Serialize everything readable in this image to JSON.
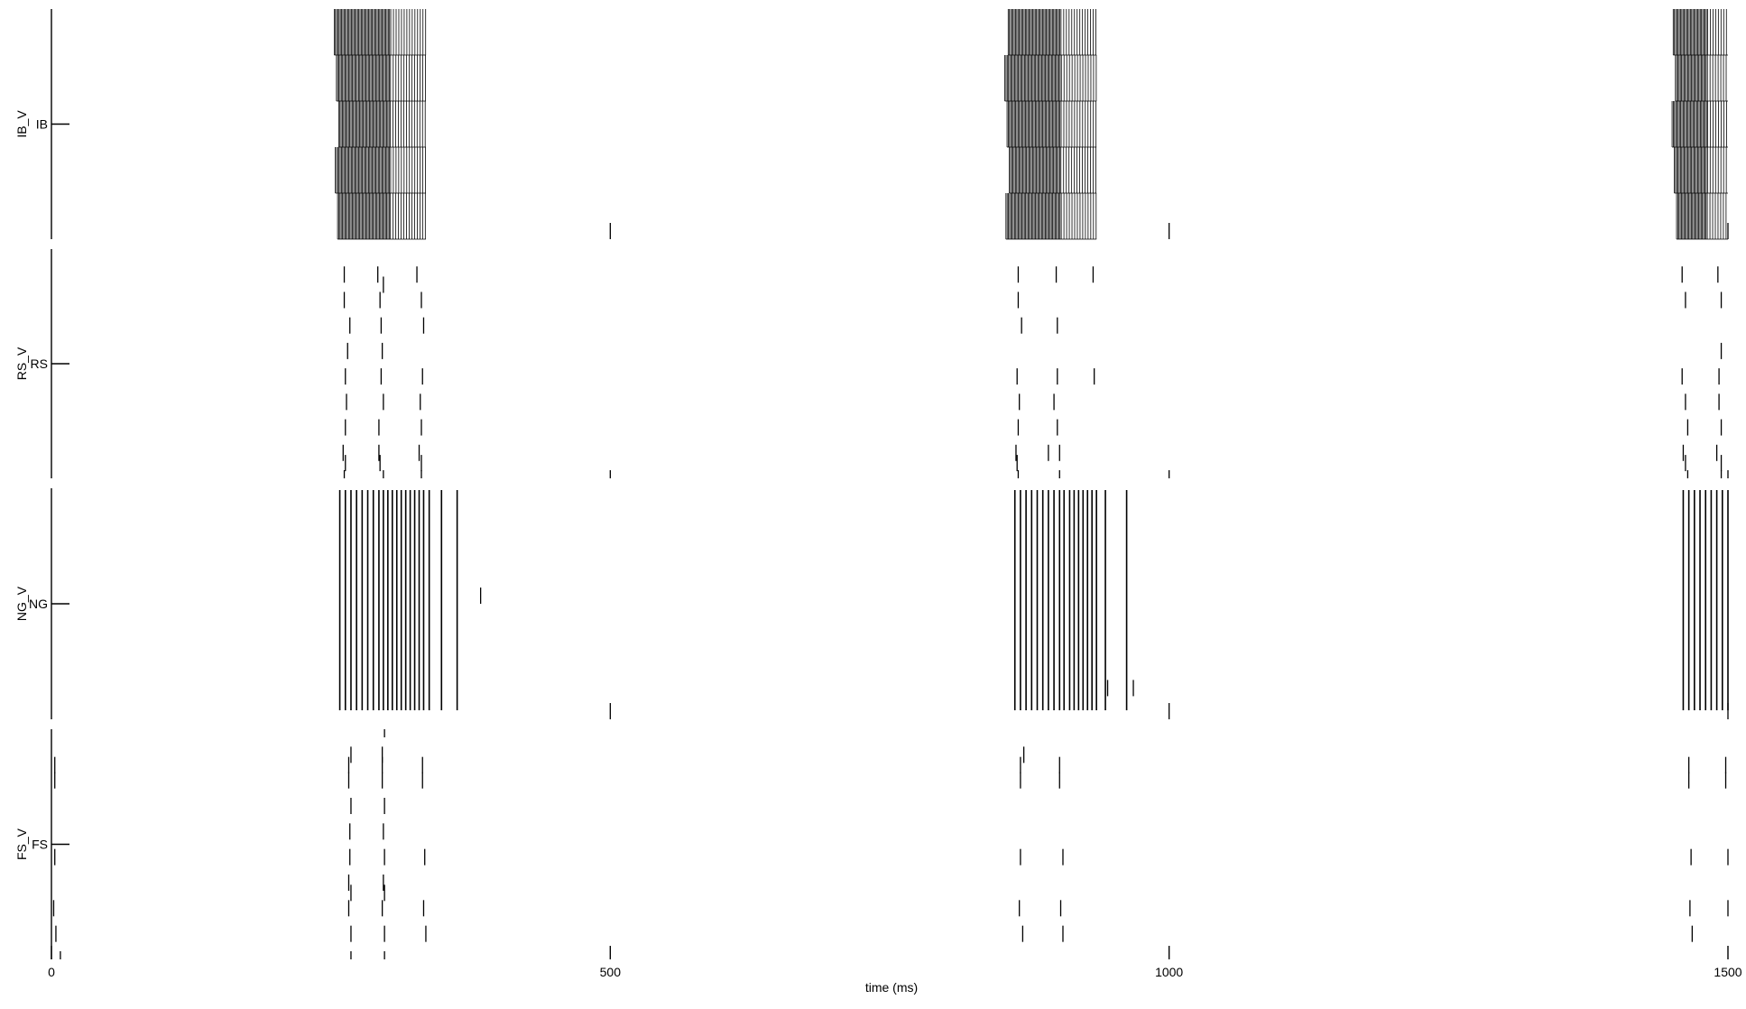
{
  "chart_data": {
    "type": "raster",
    "xlabel": "time (ms)",
    "xlim": [
      0,
      1500
    ],
    "x_ticks": [
      0,
      500,
      1000,
      1500
    ],
    "x_tick_labels": [
      "0",
      "500",
      "1000",
      "1500"
    ],
    "grid": false,
    "ink_color": "#000000",
    "panels": [
      {
        "ylabel": "IB_V",
        "ytick_label": "IB",
        "rows": 5,
        "bursts": [
          {
            "start": 255,
            "end": 335
          },
          {
            "start": 855,
            "end": 935
          },
          {
            "start": 1452,
            "end": 1500
          }
        ],
        "spikes": [
          [
            500,
            5
          ],
          [
            1000,
            5
          ],
          [
            1500,
            5
          ]
        ]
      },
      {
        "ylabel": "RS_V",
        "ytick_label": "RS",
        "rows": 8,
        "spikes": [
          [
            262,
            1
          ],
          [
            292,
            1
          ],
          [
            327,
            1
          ],
          [
            865,
            1
          ],
          [
            899,
            1
          ],
          [
            932,
            1
          ],
          [
            1459,
            1
          ],
          [
            1491,
            1
          ],
          [
            297,
            1.4
          ],
          [
            262,
            2
          ],
          [
            294,
            2
          ],
          [
            331,
            2
          ],
          [
            865,
            2
          ],
          [
            1462,
            2
          ],
          [
            1494,
            2
          ],
          [
            267,
            3
          ],
          [
            295,
            3
          ],
          [
            333,
            3
          ],
          [
            868,
            3
          ],
          [
            900,
            3
          ],
          [
            265,
            4
          ],
          [
            296,
            4
          ],
          [
            1494,
            4
          ],
          [
            263,
            5
          ],
          [
            295,
            5
          ],
          [
            332,
            5
          ],
          [
            864,
            5
          ],
          [
            900,
            5
          ],
          [
            933,
            5
          ],
          [
            1459,
            5
          ],
          [
            1492,
            5
          ],
          [
            264,
            6
          ],
          [
            297,
            6
          ],
          [
            330,
            6
          ],
          [
            866,
            6
          ],
          [
            897,
            6
          ],
          [
            1462,
            6
          ],
          [
            1492,
            6
          ],
          [
            263,
            7
          ],
          [
            293,
            7
          ],
          [
            331,
            7
          ],
          [
            865,
            7
          ],
          [
            900,
            7
          ],
          [
            1464,
            7
          ],
          [
            1494,
            7
          ],
          [
            261,
            8
          ],
          [
            293,
            8
          ],
          [
            329,
            8
          ],
          [
            863,
            8
          ],
          [
            892,
            8
          ],
          [
            902,
            8
          ],
          [
            1460,
            8
          ],
          [
            1490,
            8
          ],
          [
            263,
            8.4
          ],
          [
            294,
            8.4
          ],
          [
            331,
            8.4
          ],
          [
            864,
            8.4
          ],
          [
            1462,
            8.4
          ],
          [
            1494,
            8.4
          ],
          [
            262,
            9
          ],
          [
            297,
            9
          ],
          [
            331,
            9
          ],
          [
            865,
            9
          ],
          [
            902,
            9
          ],
          [
            1464,
            9
          ],
          [
            1494,
            9
          ],
          [
            500,
            9
          ],
          [
            1000,
            9
          ],
          [
            1500,
            9
          ]
        ]
      },
      {
        "ylabel": "NG_V",
        "ytick_label": "NG",
        "rows": 5,
        "spike_times": [
          258,
          263,
          268,
          273,
          278,
          283,
          288,
          293,
          297,
          301,
          305,
          309,
          313,
          317,
          321,
          325,
          329,
          333,
          338,
          349,
          363,
          862,
          867,
          872,
          877,
          882,
          887,
          892,
          897,
          902,
          906,
          911,
          915,
          919,
          923,
          927,
          931,
          935,
          943,
          962,
          1460,
          1465,
          1470,
          1475,
          1480,
          1485,
          1490,
          1495,
          1500
        ],
        "spikes": [
          [
            384,
            2.5
          ],
          [
            945,
            4.5
          ],
          [
            968,
            4.5
          ],
          [
            500,
            5
          ],
          [
            1000,
            5
          ],
          [
            1500,
            5
          ]
        ]
      },
      {
        "ylabel": "FS_V",
        "ytick_label": "FS",
        "rows": 8,
        "spikes": [
          [
            298,
            0
          ],
          [
            268,
            1
          ],
          [
            296,
            1
          ],
          [
            870,
            1
          ],
          [
            3,
            1.4
          ],
          [
            266,
            1.4
          ],
          [
            296,
            1.4
          ],
          [
            332,
            1.4
          ],
          [
            867,
            1.4
          ],
          [
            902,
            1.4
          ],
          [
            1465,
            1.4
          ],
          [
            1498,
            1.4
          ],
          [
            3,
            2
          ],
          [
            266,
            2
          ],
          [
            296,
            2
          ],
          [
            332,
            2
          ],
          [
            867,
            2
          ],
          [
            902,
            2
          ],
          [
            1465,
            2
          ],
          [
            1498,
            2
          ],
          [
            268,
            3
          ],
          [
            298,
            3
          ],
          [
            267,
            4
          ],
          [
            297,
            4
          ],
          [
            3,
            5
          ],
          [
            267,
            5
          ],
          [
            298,
            5
          ],
          [
            334,
            5
          ],
          [
            867,
            5
          ],
          [
            905,
            5
          ],
          [
            1467,
            5
          ],
          [
            1500,
            5
          ],
          [
            266,
            6
          ],
          [
            297,
            6
          ],
          [
            268,
            6.4
          ],
          [
            298,
            6.4
          ],
          [
            2,
            7
          ],
          [
            266,
            7
          ],
          [
            296,
            7
          ],
          [
            333,
            7
          ],
          [
            866,
            7
          ],
          [
            903,
            7
          ],
          [
            1466,
            7
          ],
          [
            1500,
            7
          ],
          [
            4,
            8
          ],
          [
            268,
            8
          ],
          [
            298,
            8
          ],
          [
            335,
            8
          ],
          [
            869,
            8
          ],
          [
            905,
            8
          ],
          [
            1468,
            8
          ],
          [
            268,
            9
          ],
          [
            298,
            9
          ],
          [
            8,
            9
          ]
        ]
      }
    ]
  }
}
